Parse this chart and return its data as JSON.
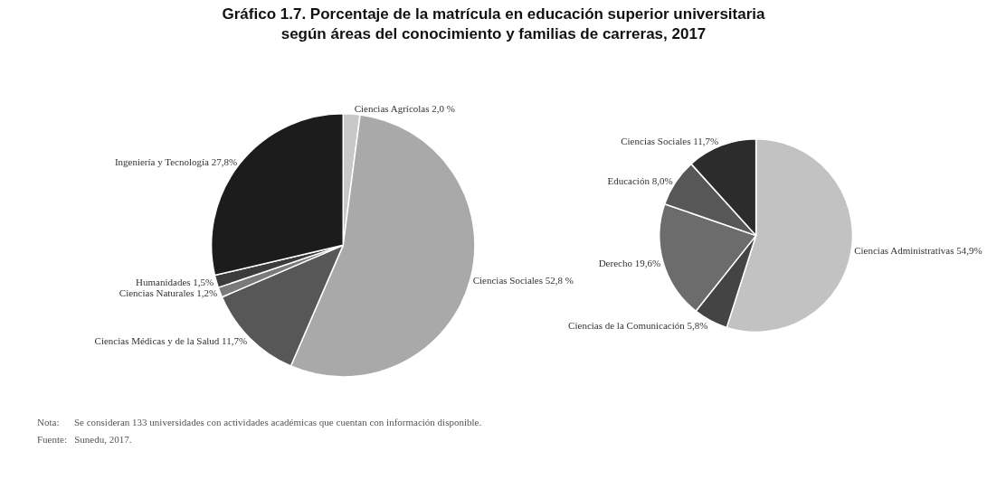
{
  "chart_data": [
    {
      "type": "pie",
      "title": "Gráfico 1.7. Porcentaje de la matrícula en educación superior universitaria según áreas del conocimiento y familias de carreras, 2017",
      "categories": [
        "Ciencias Agrícolas",
        "Ciencias Sociales",
        "Ciencias Médicas y de la Salud",
        "Ciencias Naturales",
        "Humanidades",
        "Ingeniería y Tecnología"
      ],
      "values": [
        2.0,
        52.8,
        11.7,
        1.2,
        1.5,
        27.8
      ],
      "value_labels": [
        "2,0 %",
        "52,8 %",
        "11,7%",
        "1,2%",
        "1,5%",
        "27,8%"
      ],
      "colors": [
        "#c8c8c8",
        "#a9a9a9",
        "#575757",
        "#7a7a7a",
        "#3c3c3c",
        "#1c1c1c"
      ],
      "annotations": [
        "Nota:      Se consideran 133 universidades con actividades académicas que cuentan con información disponible.",
        "Fuente:   Sunedu, 2017."
      ]
    },
    {
      "type": "pie",
      "categories": [
        "Ciencias Administrativas",
        "Ciencias de la Comunicación",
        "Derecho",
        "Educación",
        "Ciencias Sociales"
      ],
      "values": [
        54.9,
        5.8,
        19.6,
        8.0,
        11.7
      ],
      "value_labels": [
        "54,9%",
        "5,8%",
        "19,6%",
        "8,0%",
        "11,7%"
      ],
      "colors": [
        "#c2c2c2",
        "#444444",
        "#6c6c6c",
        "#575757",
        "#2c2c2c"
      ]
    }
  ]
}
